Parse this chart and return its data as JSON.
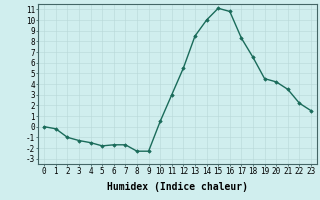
{
  "x": [
    0,
    1,
    2,
    3,
    4,
    5,
    6,
    7,
    8,
    9,
    10,
    11,
    12,
    13,
    14,
    15,
    16,
    17,
    18,
    19,
    20,
    21,
    22,
    23
  ],
  "y": [
    0,
    -0.2,
    -1.0,
    -1.3,
    -1.5,
    -1.8,
    -1.7,
    -1.7,
    -2.3,
    -2.3,
    0.5,
    3.0,
    5.5,
    8.5,
    10.0,
    11.1,
    10.8,
    8.3,
    6.5,
    4.5,
    4.2,
    3.5,
    2.2,
    1.5
  ],
  "line_color": "#1a6b5a",
  "marker": "D",
  "marker_size": 1.8,
  "bg_color": "#d0eeee",
  "grid_color": "#b8d8d8",
  "xlabel": "Humidex (Indice chaleur)",
  "xlabel_fontsize": 7,
  "xlim": [
    -0.5,
    23.5
  ],
  "ylim": [
    -3.5,
    11.5
  ],
  "yticks": [
    -3,
    -2,
    -1,
    0,
    1,
    2,
    3,
    4,
    5,
    6,
    7,
    8,
    9,
    10,
    11
  ],
  "xticks": [
    0,
    1,
    2,
    3,
    4,
    5,
    6,
    7,
    8,
    9,
    10,
    11,
    12,
    13,
    14,
    15,
    16,
    17,
    18,
    19,
    20,
    21,
    22,
    23
  ],
  "tick_fontsize": 5.5,
  "linewidth": 1.0
}
